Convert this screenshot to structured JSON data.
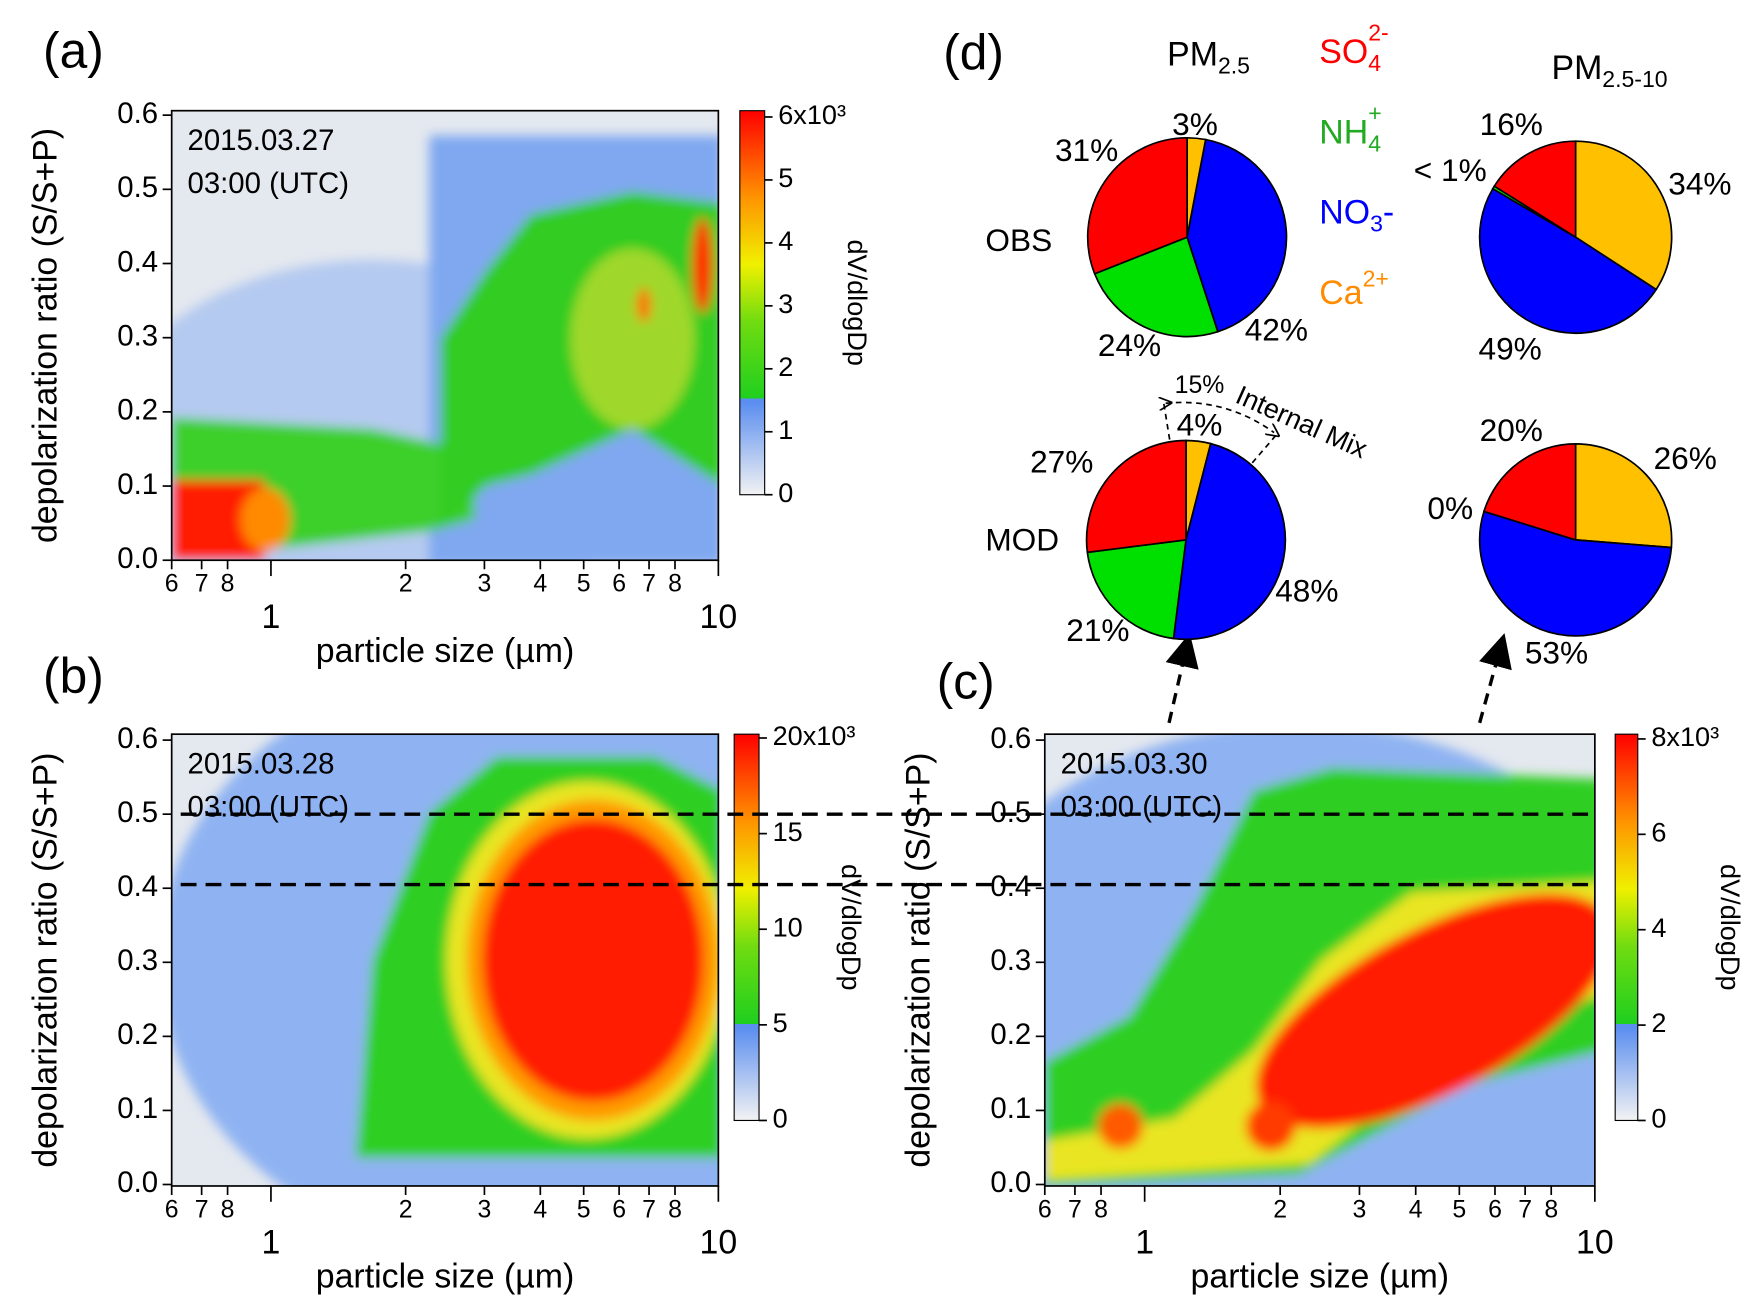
{
  "chart_data": [
    {
      "type": "heatmap",
      "panel_label": "(a)",
      "annotation": [
        "2015.03.27",
        "03:00 (UTC)"
      ],
      "xlabel": "particle size (µm)",
      "ylabel": "depolarization ratio (S/S+P)",
      "log_x": true,
      "xlim": [
        0.6,
        10
      ],
      "xticks": [
        {
          "value": 0.6,
          "label": "6"
        },
        {
          "value": 0.7,
          "label": "7"
        },
        {
          "value": 0.8,
          "label": "8"
        },
        1,
        2,
        3,
        4,
        5,
        6,
        7,
        8,
        10
      ],
      "ylim": [
        0,
        0.606
      ],
      "yticks": [
        {
          "value": 0,
          "label": "0.0"
        },
        0.1,
        0.2,
        0.3,
        0.4,
        0.5,
        0.6
      ],
      "colorbar": {
        "label": "dV/dlogDp",
        "lim": [
          0,
          6100
        ],
        "ticks": [
          0,
          {
            "value": 1000,
            "label": "1"
          },
          {
            "value": 2000,
            "label": "2"
          },
          {
            "value": 3000,
            "label": "3"
          },
          {
            "value": 4000,
            "label": "4"
          },
          {
            "value": 5000,
            "label": "5"
          },
          {
            "value": 6000,
            "label": "6x10³"
          }
        ]
      }
    },
    {
      "type": "heatmap",
      "panel_label": "(b)",
      "annotation": [
        "2015.03.28",
        "03:00 (UTC)"
      ],
      "xlabel": "particle size (µm)",
      "ylabel": "depolarization ratio (S/S+P)",
      "log_x": true,
      "xlim": [
        0.6,
        10
      ],
      "xticks": [
        {
          "value": 0.6,
          "label": "6"
        },
        {
          "value": 0.7,
          "label": "7"
        },
        {
          "value": 0.8,
          "label": "8"
        },
        1,
        2,
        3,
        4,
        5,
        6,
        7,
        8,
        10
      ],
      "ylim": [
        -0.002,
        0.608
      ],
      "yticks": [
        {
          "value": 0,
          "label": "0.0"
        },
        0.1,
        0.2,
        0.3,
        0.4,
        0.5,
        0.6
      ],
      "hlines": [
        0.5,
        0.405
      ],
      "colorbar": {
        "label": "dV/dlogDp",
        "lim": [
          0,
          20200
        ],
        "ticks": [
          0,
          {
            "value": 5000,
            "label": "5"
          },
          {
            "value": 10000,
            "label": "10"
          },
          {
            "value": 15000,
            "label": "15"
          },
          {
            "value": 20000,
            "label": "20x10³"
          }
        ]
      }
    },
    {
      "type": "heatmap",
      "panel_label": "(c)",
      "annotation": [
        "2015.03.30",
        "03:00 (UTC)"
      ],
      "xlabel": "particle size (µm)",
      "ylabel": "depolarization ratio (S/S+P)",
      "log_x": true,
      "xlim": [
        0.6,
        10
      ],
      "xticks": [
        {
          "value": 0.6,
          "label": "6"
        },
        {
          "value": 0.7,
          "label": "7"
        },
        {
          "value": 0.8,
          "label": "8"
        },
        1,
        2,
        3,
        4,
        5,
        6,
        7,
        8,
        10
      ],
      "ylim": [
        -0.002,
        0.608
      ],
      "yticks": [
        {
          "value": 0,
          "label": "0.0"
        },
        0.1,
        0.2,
        0.3,
        0.4,
        0.5,
        0.6
      ],
      "colorbar": {
        "label": "dV/dlogDp",
        "lim": [
          0,
          8100
        ],
        "ticks": [
          0,
          {
            "value": 2000,
            "label": "2"
          },
          {
            "value": 4000,
            "label": "4"
          },
          {
            "value": 6000,
            "label": "6"
          },
          {
            "value": 8000,
            "label": "8x10³"
          }
        ]
      }
    },
    {
      "type": "pie",
      "panel_label": "(d)",
      "columns": [
        {
          "text": "PM",
          "sub": "2.5"
        },
        {
          "text": "PM",
          "sub": "2.5-10"
        }
      ],
      "rows": [
        "OBS",
        "MOD"
      ],
      "categories": [
        {
          "text": "SO",
          "sub": "4",
          "sup": "2-"
        },
        {
          "text": "NH",
          "sub": "4",
          "sup": "+"
        },
        {
          "text": "NO",
          "sub": "3",
          "after": "-"
        },
        {
          "text": "Ca",
          "sup": "2+"
        }
      ],
      "colors": [
        "#ff0000",
        "#00e000",
        "#0000ff",
        "#ffc000"
      ],
      "label_colors": [
        "#ff0000",
        "#22aa22",
        "#5a40e0",
        "#ff8c00"
      ],
      "legend_colors": [
        "#ff0000",
        "#22aa22",
        "#0000ff",
        "#ff8c00"
      ],
      "pies": [
        {
          "values": [
            31,
            24,
            42,
            3
          ],
          "value_labels": [
            "31%",
            "24%",
            "42%",
            "3%"
          ]
        },
        {
          "values": [
            16,
            0.5,
            49,
            34
          ],
          "value_labels": [
            "16%",
            "< 1%",
            "49%",
            "34%"
          ]
        },
        {
          "values": [
            27,
            21,
            48,
            4
          ],
          "value_labels": [
            "27%",
            "21%",
            "48%",
            "4%"
          ]
        },
        {
          "values": [
            20,
            0,
            53,
            26
          ],
          "value_labels": [
            "20%",
            "0%",
            "53%",
            "26%"
          ]
        }
      ],
      "internal_mix": {
        "label": "15%",
        "text": "Internal Mix"
      }
    }
  ]
}
